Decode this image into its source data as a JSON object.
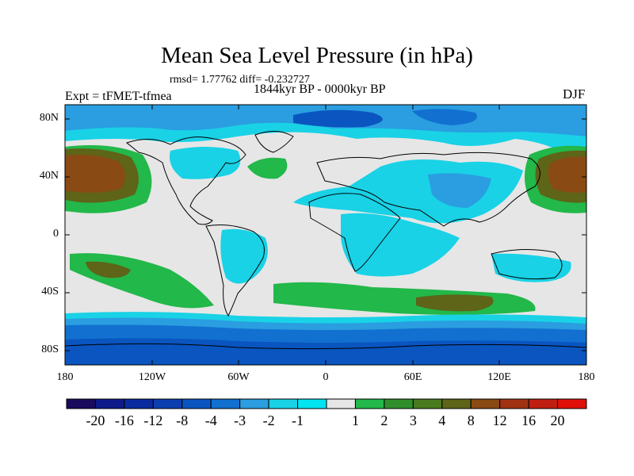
{
  "map": {
    "title": "Mean Sea Level Pressure (in hPa)",
    "stats": "rmsd= 1.77762  diff= -0.232727",
    "period": "1844kyr BP - 0000kyr BP",
    "experiment": "Expt = tFMET-tfmea",
    "season": "DJF",
    "y_ticks": [
      "80N",
      "40N",
      "0",
      "40S",
      "80S"
    ],
    "x_ticks": [
      "180",
      "120W",
      "60W",
      "0",
      "60E",
      "120E",
      "180"
    ]
  },
  "colorbar": {
    "labels": [
      "-20",
      "-16",
      "-12",
      "-8",
      "-4",
      "-3",
      "-2",
      "-1",
      "1",
      "2",
      "3",
      "4",
      "8",
      "12",
      "16",
      "20"
    ],
    "colors": [
      "#1a0a5e",
      "#0d1a8a",
      "#0a2aa0",
      "#0b3fb0",
      "#0a55c0",
      "#1170d0",
      "#2a9ee0",
      "#19d2e6",
      "#00e5f0",
      "#e6e6e6",
      "#22b84a",
      "#2e8f2a",
      "#4a7a1e",
      "#5e6418",
      "#8a4a14",
      "#a03212",
      "#c01e10",
      "#e01008"
    ]
  }
}
